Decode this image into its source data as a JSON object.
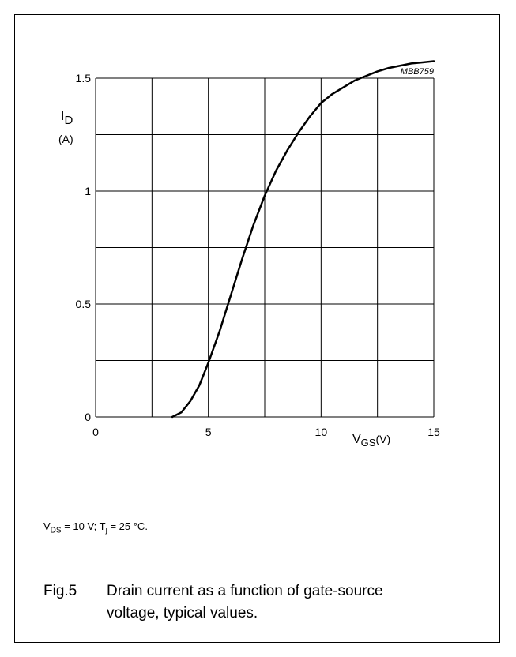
{
  "chart_data": {
    "type": "line",
    "code": "MBB759",
    "ylabel": {
      "symbol": "I",
      "sub": "D",
      "unit": "(A)"
    },
    "xlabel": {
      "symbol": "V",
      "sub": "GS",
      "unit": "(V)"
    },
    "xlim": [
      0,
      15
    ],
    "ylim": [
      0,
      1.5
    ],
    "xticks": [
      0,
      5,
      10,
      15
    ],
    "xtick_labels": [
      "0",
      "5",
      "10",
      "15"
    ],
    "yticks": [
      0,
      0.5,
      1,
      1.5
    ],
    "ytick_labels": [
      "0",
      "0.5",
      "1",
      "1.5"
    ],
    "grid_x_step": 2.5,
    "grid_y_step": 0.25,
    "grid": true,
    "series": [
      {
        "x": [
          3.4,
          3.8,
          4.2,
          4.6,
          5.0,
          5.5,
          6.0,
          6.5,
          7.0,
          7.5,
          8.0,
          8.5,
          9.0,
          9.5,
          10.0,
          10.5,
          11.0,
          11.5,
          12.0,
          12.5,
          13.0,
          13.5,
          14.0,
          14.5,
          15.0
        ],
        "y": [
          0.0,
          0.02,
          0.07,
          0.14,
          0.24,
          0.38,
          0.54,
          0.7,
          0.85,
          0.98,
          1.09,
          1.18,
          1.26,
          1.33,
          1.39,
          1.43,
          1.46,
          1.49,
          1.51,
          1.53,
          1.545,
          1.555,
          1.565,
          1.57,
          1.575
        ]
      }
    ]
  },
  "conditions": {
    "v": "V",
    "v_sub": "DS",
    "v_rest": " = 10 V; ",
    "t": "T",
    "t_sub": "j",
    "t_rest": " = 25 °C."
  },
  "caption": {
    "number": "Fig.5",
    "text": "Drain current as a function of gate-source voltage, typical values."
  }
}
